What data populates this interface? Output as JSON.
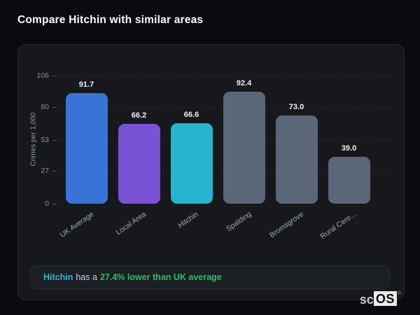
{
  "header": {
    "title": "Compare Hitchin with similar areas"
  },
  "chart_data": {
    "type": "bar",
    "categories": [
      "UK Average",
      "Local Area",
      "Hitchin",
      "Spalding",
      "Bromsgrove",
      "Rural Cere..."
    ],
    "values": [
      91.7,
      66.2,
      66.6,
      92.4,
      73.0,
      39.0
    ],
    "value_labels": [
      "91.7",
      "66.2",
      "66.6",
      "92.4",
      "73.0",
      "39.0"
    ],
    "bar_colors": [
      "#3a73d8",
      "#7a52d6",
      "#26b4ce",
      "#5c6679",
      "#5c6679",
      "#5c6679"
    ],
    "title": "",
    "xlabel": "",
    "ylabel": "Crimes per 1,000",
    "ylim": [
      0,
      106
    ],
    "yticks": [
      0,
      27,
      53,
      80,
      106
    ],
    "grid": "dashed horizontal",
    "legend": "none"
  },
  "note": {
    "area_label": "Hitchin",
    "middle_text": "has a",
    "highlight_text": "27.4% lower than UK average"
  },
  "footer": {
    "logo_prefix": "sc",
    "logo_suffix": "OS",
    "logo_mark": "®"
  },
  "colors": {
    "page_background": "#0a0b0e",
    "panel_background": "#17181c",
    "note_area_text": "#2cb9cf",
    "note_middle_text": "#ccd1d8",
    "note_highlight_text": "#25c166",
    "bar_blue": "#3a73d8",
    "bar_purple": "#7a52d6",
    "bar_teal": "#26b4ce",
    "bar_slate": "#5c6679"
  }
}
